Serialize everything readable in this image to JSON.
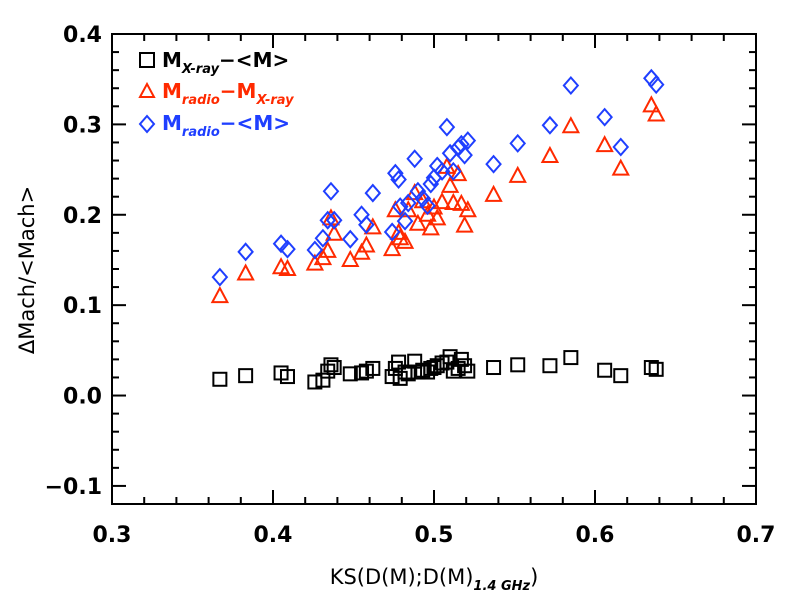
{
  "chart_data": {
    "type": "scatter",
    "title": "",
    "xlabel_main": "KS(D(M);D(M)",
    "xlabel_sub": "1.4 GHz",
    "xlabel_close": ")",
    "ylabel": "ΔMach/<Mach>",
    "xlim": [
      0.3,
      0.7
    ],
    "ylim": [
      -0.12,
      0.4
    ],
    "xticks": [
      0.3,
      0.4,
      0.5,
      0.6,
      0.7
    ],
    "xtick_labels": [
      "0.3",
      "0.4",
      "0.5",
      "0.6",
      "0.7"
    ],
    "yticks": [
      -0.1,
      0.0,
      0.1,
      0.2,
      0.3,
      0.4
    ],
    "ytick_labels": [
      "−0.1",
      "0.0",
      "0.1",
      "0.2",
      "0.3",
      "0.4"
    ],
    "legend_position": "top-left",
    "series": [
      {
        "name": "Mx-ray-<M>",
        "label_main": "M",
        "label_sub": "X-ray",
        "label_rest": "−<M>",
        "marker": "square",
        "color": "#000000",
        "x": [
          0.367,
          0.383,
          0.405,
          0.409,
          0.426,
          0.431,
          0.434,
          0.436,
          0.438,
          0.448,
          0.455,
          0.458,
          0.462,
          0.474,
          0.476,
          0.478,
          0.479,
          0.482,
          0.484,
          0.488,
          0.49,
          0.493,
          0.496,
          0.498,
          0.5,
          0.502,
          0.505,
          0.508,
          0.51,
          0.512,
          0.515,
          0.517,
          0.519,
          0.521,
          0.537,
          0.552,
          0.572,
          0.585,
          0.606,
          0.616,
          0.635,
          0.638
        ],
        "y": [
          0.018,
          0.022,
          0.025,
          0.021,
          0.015,
          0.017,
          0.027,
          0.034,
          0.031,
          0.024,
          0.025,
          0.027,
          0.03,
          0.021,
          0.03,
          0.037,
          0.019,
          0.026,
          0.024,
          0.038,
          0.026,
          0.028,
          0.026,
          0.03,
          0.031,
          0.033,
          0.036,
          0.037,
          0.043,
          0.027,
          0.03,
          0.04,
          0.033,
          0.027,
          0.031,
          0.034,
          0.033,
          0.042,
          0.028,
          0.022,
          0.031,
          0.029
        ]
      },
      {
        "name": "Mradio-Mx-ray",
        "label_main": "M",
        "label_sub": "radio",
        "label_rest": "−M",
        "label_sub2": "X-ray",
        "marker": "triangle",
        "color": "#ff2a00",
        "x": [
          0.367,
          0.383,
          0.405,
          0.409,
          0.426,
          0.431,
          0.434,
          0.436,
          0.438,
          0.448,
          0.455,
          0.458,
          0.462,
          0.474,
          0.476,
          0.478,
          0.479,
          0.482,
          0.484,
          0.488,
          0.49,
          0.493,
          0.496,
          0.498,
          0.5,
          0.502,
          0.505,
          0.508,
          0.51,
          0.512,
          0.515,
          0.517,
          0.519,
          0.521,
          0.537,
          0.552,
          0.572,
          0.585,
          0.606,
          0.616,
          0.635,
          0.638
        ],
        "y": [
          0.11,
          0.135,
          0.142,
          0.14,
          0.146,
          0.152,
          0.16,
          0.196,
          0.179,
          0.15,
          0.158,
          0.166,
          0.186,
          0.162,
          0.205,
          0.18,
          0.174,
          0.17,
          0.205,
          0.224,
          0.19,
          0.215,
          0.2,
          0.185,
          0.208,
          0.196,
          0.214,
          0.253,
          0.232,
          0.213,
          0.245,
          0.212,
          0.188,
          0.205,
          0.222,
          0.243,
          0.265,
          0.298,
          0.277,
          0.251,
          0.321,
          0.311
        ]
      },
      {
        "name": "Mradio-<M>",
        "label_main": "M",
        "label_sub": "radio",
        "label_rest": "−<M>",
        "marker": "diamond",
        "color": "#1f3fff",
        "x": [
          0.367,
          0.383,
          0.405,
          0.409,
          0.426,
          0.431,
          0.434,
          0.436,
          0.438,
          0.448,
          0.455,
          0.458,
          0.462,
          0.474,
          0.476,
          0.478,
          0.479,
          0.482,
          0.484,
          0.488,
          0.49,
          0.493,
          0.496,
          0.498,
          0.5,
          0.502,
          0.505,
          0.508,
          0.51,
          0.512,
          0.515,
          0.517,
          0.519,
          0.521,
          0.537,
          0.552,
          0.572,
          0.585,
          0.606,
          0.616,
          0.635,
          0.638
        ],
        "y": [
          0.131,
          0.159,
          0.168,
          0.162,
          0.161,
          0.174,
          0.194,
          0.226,
          0.194,
          0.173,
          0.2,
          0.189,
          0.224,
          0.181,
          0.246,
          0.239,
          0.209,
          0.193,
          0.213,
          0.262,
          0.226,
          0.218,
          0.21,
          0.234,
          0.241,
          0.254,
          0.248,
          0.297,
          0.268,
          0.248,
          0.274,
          0.278,
          0.266,
          0.282,
          0.256,
          0.279,
          0.299,
          0.343,
          0.308,
          0.275,
          0.351,
          0.344
        ]
      }
    ]
  }
}
